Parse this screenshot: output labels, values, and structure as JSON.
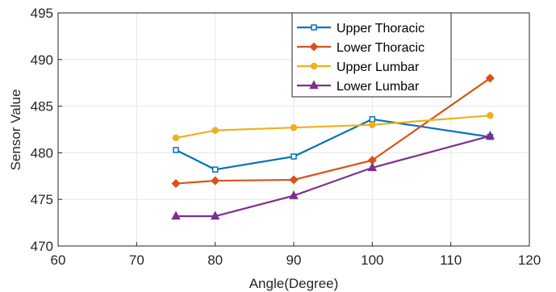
{
  "chart_data": {
    "type": "line",
    "title": "",
    "xlabel": "Angle(Degree)",
    "ylabel": "Sensor Value",
    "xlim": [
      60,
      120
    ],
    "ylim": [
      470,
      495
    ],
    "xticks": [
      "60",
      "70",
      "80",
      "90",
      "100",
      "110",
      "120"
    ],
    "yticks": [
      "470",
      "475",
      "480",
      "485",
      "490",
      "495"
    ],
    "grid": true,
    "legend_position": "top-right",
    "x": [
      75,
      80,
      90,
      100,
      115
    ],
    "series": [
      {
        "name": "Upper Thoracic",
        "color": "#0072BD",
        "marker": "square",
        "values": [
          480.3,
          478.2,
          479.6,
          483.6,
          481.7
        ]
      },
      {
        "name": "Lower Thoracic",
        "color": "#D95319",
        "marker": "diamond",
        "values": [
          476.7,
          477.0,
          477.1,
          479.2,
          488.0
        ]
      },
      {
        "name": "Upper Lumbar",
        "color": "#EDB120",
        "marker": "circle",
        "values": [
          481.6,
          482.4,
          482.7,
          483.0,
          484.0
        ]
      },
      {
        "name": "Lower Lumbar",
        "color": "#7E2F8E",
        "marker": "triangle",
        "values": [
          473.2,
          473.2,
          475.4,
          478.4,
          481.8
        ]
      }
    ]
  }
}
